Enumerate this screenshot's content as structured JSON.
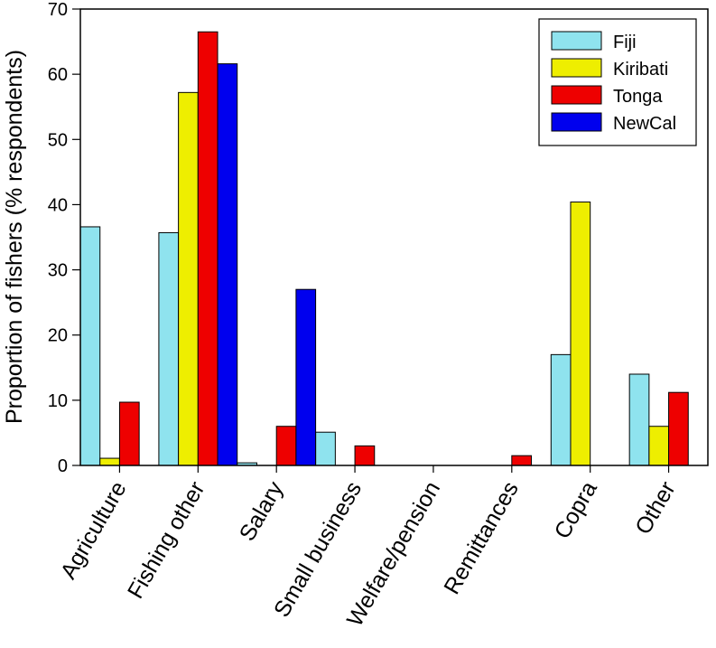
{
  "chart_data": {
    "type": "bar",
    "title": "",
    "xlabel": "",
    "ylabel": "Proportion of fishers (% respondents)",
    "ylim": [
      0,
      70
    ],
    "yticks": [
      0,
      10,
      20,
      30,
      40,
      50,
      60,
      70
    ],
    "grid": false,
    "legend_position": "top-right",
    "categories": [
      "Agriculture",
      "Fishing other",
      "Salary",
      "Small business",
      "Welfare/pension",
      "Remittances",
      "Copra",
      "Other"
    ],
    "series": [
      {
        "name": "Fiji",
        "color": "#8fe3ee",
        "values": [
          36.6,
          35.7,
          0.4,
          5.1,
          0,
          0,
          17.0,
          14.0
        ]
      },
      {
        "name": "Kiribati",
        "color": "#eeee00",
        "values": [
          1.1,
          57.2,
          0,
          0,
          0,
          0,
          40.4,
          6.0
        ]
      },
      {
        "name": "Tonga",
        "color": "#ee0000",
        "values": [
          9.7,
          66.5,
          6.0,
          3.0,
          0,
          1.5,
          0,
          11.2
        ]
      },
      {
        "name": "NewCal",
        "color": "#0000ee",
        "values": [
          0,
          61.6,
          27.0,
          0,
          0,
          0,
          0,
          0
        ]
      }
    ]
  }
}
